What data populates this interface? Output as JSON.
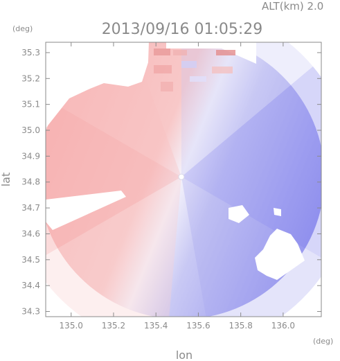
{
  "header": {
    "altitude": "ALT(km) 2.0",
    "timestamp": "2013/09/16 01:05:29"
  },
  "chart_data": {
    "type": "heatmap",
    "title": "2013/09/16 01:05:29",
    "xlabel": "lon",
    "ylabel": "lat",
    "x_unit": "(deg)",
    "y_unit": "(deg)",
    "xlim": [
      134.88,
      136.18
    ],
    "ylim": [
      34.28,
      35.34
    ],
    "x_ticks": [
      135.0,
      135.2,
      135.4,
      135.6,
      135.8,
      136.0
    ],
    "x_tick_labels": [
      "135.0",
      "135.2",
      "135.4",
      "135.6",
      "135.8",
      "136.0"
    ],
    "y_ticks": [
      34.3,
      34.4,
      34.5,
      34.6,
      34.7,
      34.8,
      34.9,
      35.0,
      35.1,
      35.2,
      35.3
    ],
    "y_tick_labels": [
      "34.3",
      "34.4",
      "34.5",
      "34.6",
      "34.7",
      "34.8",
      "34.9",
      "35.0",
      "35.1",
      "35.2",
      "35.3"
    ],
    "radar_center": {
      "lon": 135.52,
      "lat": 34.82
    },
    "radar_radius_deg": {
      "lon": 0.675,
      "lat": 0.55
    },
    "colors": {
      "positive": "#f4a0a0",
      "near_zero": "#f4f4ff",
      "negative": "#8a8af0",
      "frame": "#8a8a8a"
    },
    "field_description": "doppler velocity field: reds on west side, blues on east side",
    "grid": false
  }
}
